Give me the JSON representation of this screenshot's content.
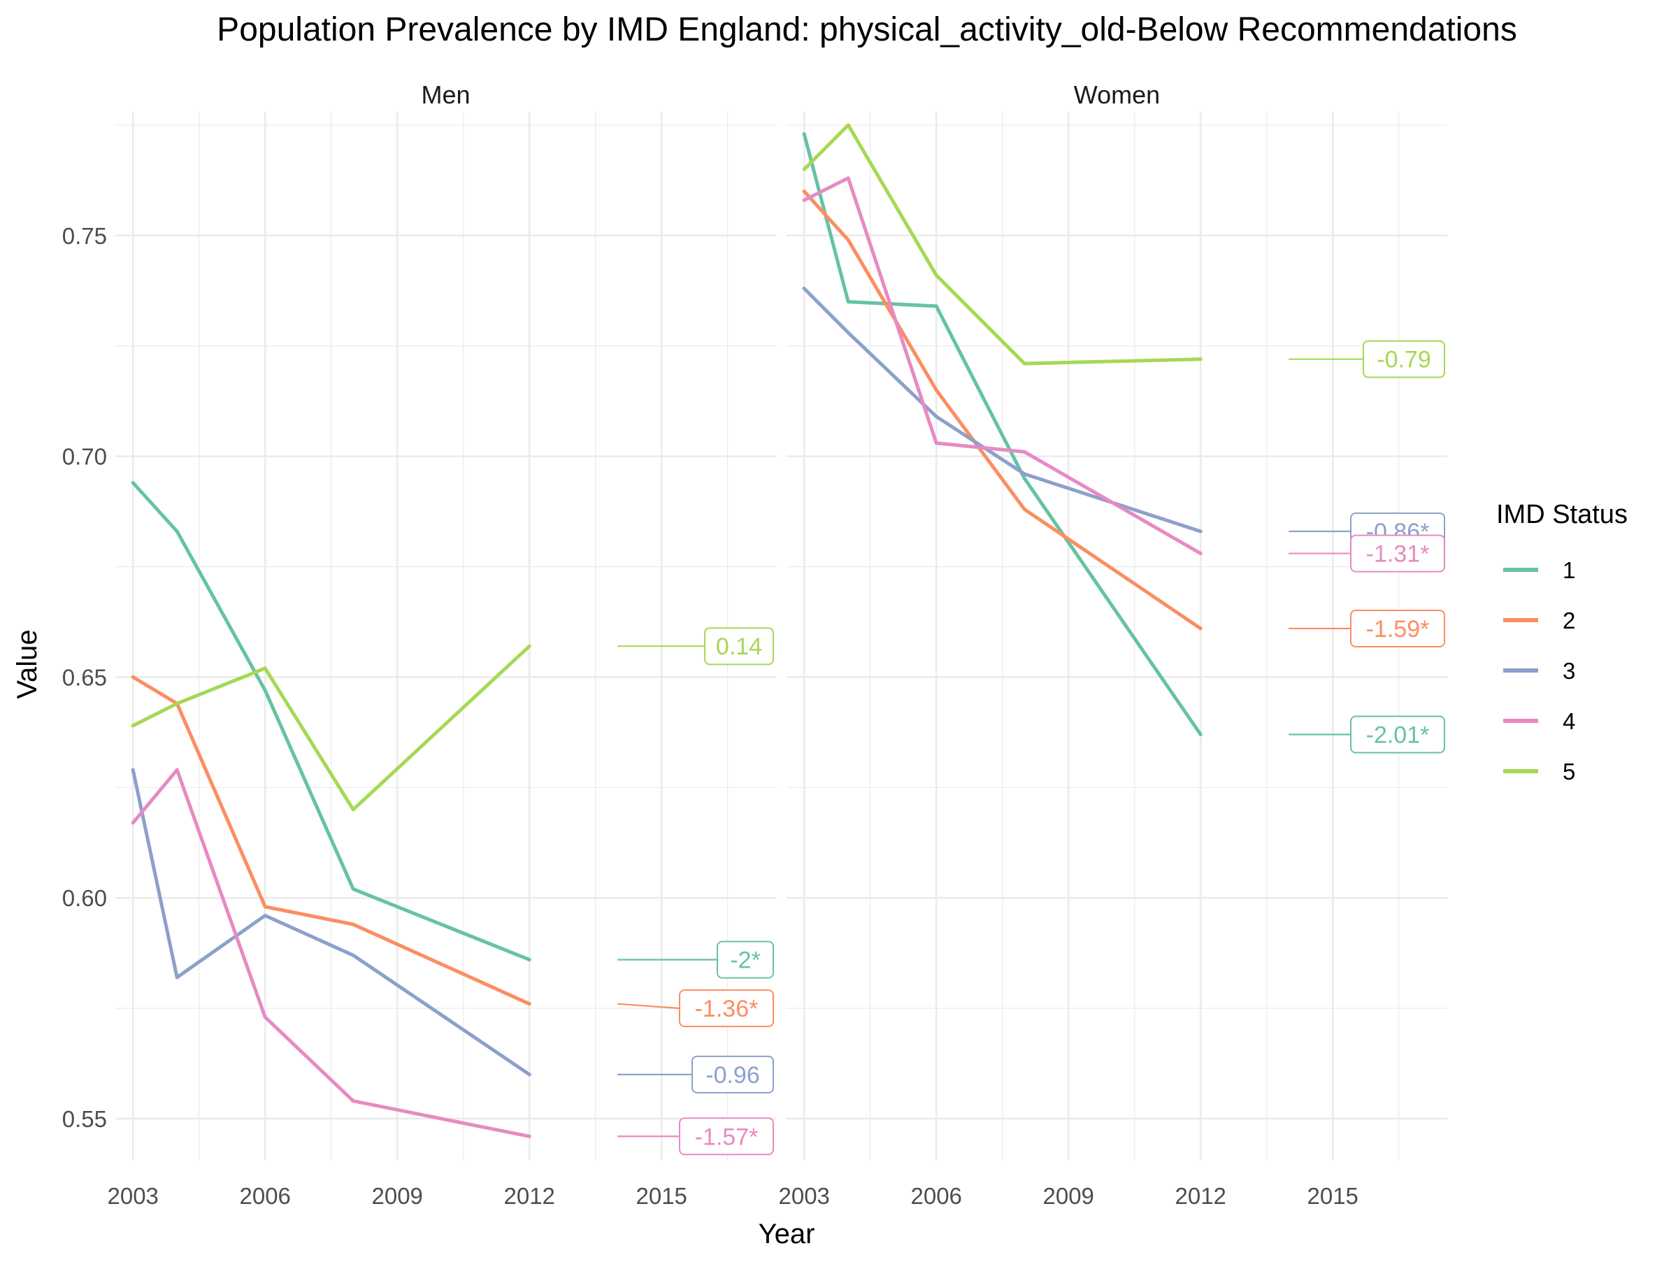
{
  "chart_data": {
    "type": "line",
    "title": "Population Prevalence by IMD England: physical_activity_old-Below Recommendations",
    "xlabel": "Year",
    "ylabel": "Value",
    "xlim": [
      2002.6,
      2017.6
    ],
    "ylim": [
      0.5405,
      0.778
    ],
    "x_ticks": [
      2003,
      2006,
      2009,
      2012,
      2015
    ],
    "y_ticks": [
      0.55,
      0.6,
      0.65,
      0.7,
      0.75
    ],
    "grid": true,
    "legend": {
      "title": "IMD Status",
      "position": "right",
      "entries": [
        "1",
        "2",
        "3",
        "4",
        "5"
      ]
    },
    "colors": {
      "1": "#66C2A5",
      "2": "#FC8D62",
      "3": "#8DA0CB",
      "4": "#E78AC3",
      "5": "#A6D854"
    },
    "facets": [
      {
        "label": "Men",
        "series": [
          {
            "name": "1",
            "x": [
              2003,
              2004,
              2006,
              2008,
              2012
            ],
            "y": [
              0.694,
              0.683,
              0.647,
              0.602,
              0.586
            ],
            "annotation": "-2*",
            "annotation_y": 0.586
          },
          {
            "name": "2",
            "x": [
              2003,
              2004,
              2006,
              2008,
              2012
            ],
            "y": [
              0.65,
              0.644,
              0.598,
              0.594,
              0.576
            ],
            "annotation": "-1.36*",
            "annotation_y": 0.575
          },
          {
            "name": "3",
            "x": [
              2003,
              2004,
              2006,
              2008,
              2012
            ],
            "y": [
              0.629,
              0.582,
              0.596,
              0.587,
              0.56
            ],
            "annotation": "-0.96",
            "annotation_y": 0.56
          },
          {
            "name": "4",
            "x": [
              2003,
              2004,
              2006,
              2008,
              2012
            ],
            "y": [
              0.617,
              0.629,
              0.573,
              0.554,
              0.546
            ],
            "annotation": "-1.57*",
            "annotation_y": 0.546
          },
          {
            "name": "5",
            "x": [
              2003,
              2004,
              2006,
              2008,
              2012
            ],
            "y": [
              0.639,
              0.644,
              0.652,
              0.62,
              0.657
            ],
            "annotation": "0.14",
            "annotation_y": 0.657
          }
        ]
      },
      {
        "label": "Women",
        "series": [
          {
            "name": "1",
            "x": [
              2003,
              2004,
              2006,
              2008,
              2012
            ],
            "y": [
              0.773,
              0.735,
              0.734,
              0.695,
              0.637
            ],
            "annotation": "-2.01*",
            "annotation_y": 0.637
          },
          {
            "name": "2",
            "x": [
              2003,
              2004,
              2006,
              2008,
              2012
            ],
            "y": [
              0.76,
              0.749,
              0.715,
              0.688,
              0.661
            ],
            "annotation": "-1.59*",
            "annotation_y": 0.661
          },
          {
            "name": "3",
            "x": [
              2003,
              2004,
              2006,
              2008,
              2012
            ],
            "y": [
              0.738,
              0.728,
              0.709,
              0.696,
              0.683
            ],
            "annotation": "-0.86*",
            "annotation_y": 0.683
          },
          {
            "name": "4",
            "x": [
              2003,
              2004,
              2006,
              2008,
              2012
            ],
            "y": [
              0.758,
              0.763,
              0.703,
              0.701,
              0.678
            ],
            "annotation": "-1.31*",
            "annotation_y": 0.678
          },
          {
            "name": "5",
            "x": [
              2003,
              2004,
              2006,
              2008,
              2012
            ],
            "y": [
              0.765,
              0.775,
              0.741,
              0.721,
              0.722
            ],
            "annotation": "-0.79",
            "annotation_y": 0.722
          }
        ]
      }
    ]
  }
}
